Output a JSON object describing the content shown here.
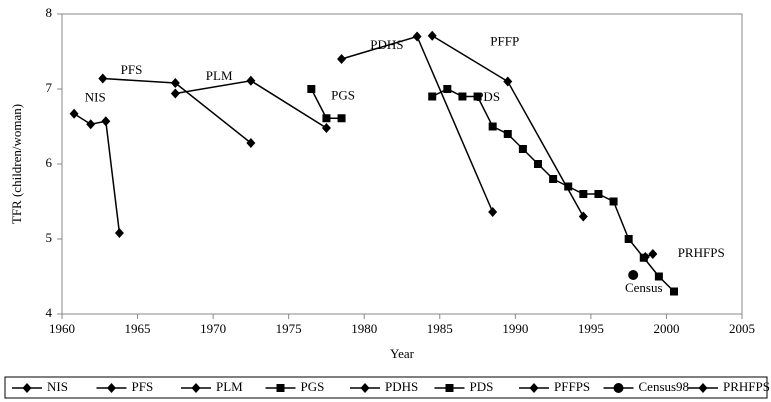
{
  "chart_data": {
    "type": "line",
    "xlabel": "Year",
    "ylabel": "TFR (children/woman)",
    "xlim": [
      1960,
      2005
    ],
    "xticks": [
      1960,
      1965,
      1970,
      1975,
      1980,
      1985,
      1990,
      1995,
      2000,
      2005
    ],
    "ylim": [
      4,
      8
    ],
    "yticks": [
      4,
      5,
      6,
      7,
      8
    ],
    "annotations": [
      "NIS",
      "PFS",
      "PLM",
      "PGS",
      "PDHS",
      "PFFP",
      "PDS",
      "PRHFPS",
      "Census"
    ],
    "series": [
      {
        "name": "NIS",
        "color": "#000000",
        "marker": "diamond",
        "x": [
          1960.8,
          1961.9,
          1962.9,
          1963.8
        ],
        "values": [
          6.67,
          6.53,
          6.57,
          5.08
        ]
      },
      {
        "name": "PFS",
        "color": "#000000",
        "marker": "diamond",
        "x": [
          1962.7,
          1967.5,
          1972.5
        ],
        "values": [
          7.14,
          7.08,
          6.28
        ]
      },
      {
        "name": "PLM",
        "color": "#000000",
        "marker": "diamond",
        "x": [
          1967.5,
          1972.5,
          1977.5
        ],
        "values": [
          6.94,
          7.11,
          6.48
        ]
      },
      {
        "name": "PGS",
        "color": "#000000",
        "marker": "square",
        "x": [
          1976.5,
          1977.5,
          1978.5
        ],
        "values": [
          7.0,
          6.61,
          6.61
        ]
      },
      {
        "name": "PDHS",
        "color": "#000000",
        "marker": "diamond",
        "x": [
          1978.5,
          1983.5,
          1988.5
        ],
        "values": [
          7.4,
          7.7,
          5.36
        ]
      },
      {
        "name": "PDS",
        "color": "#000000",
        "marker": "square",
        "x": [
          1984.5,
          1985.5,
          1986.5,
          1987.5,
          1988.5,
          1989.5,
          1990.5,
          1991.5,
          1992.5,
          1993.5,
          1994.5,
          1995.5,
          1996.5,
          1997.5,
          1998.5,
          1999.5,
          2000.5
        ],
        "values": [
          6.9,
          7.0,
          6.9,
          6.9,
          6.5,
          6.4,
          6.2,
          6.0,
          5.8,
          5.7,
          5.6,
          5.6,
          5.5,
          5.0,
          4.75,
          4.5,
          4.3
        ]
      },
      {
        "name": "PFFPS",
        "color": "#000000",
        "marker": "diamond",
        "x": [
          1984.5,
          1989.5,
          1994.5
        ],
        "values": [
          7.71,
          7.1,
          5.3
        ]
      },
      {
        "name": "Census98",
        "color": "#000000",
        "marker": "circle",
        "x": [
          1997.8
        ],
        "values": [
          4.52
        ]
      },
      {
        "name": "PRHFPS",
        "color": "#000000",
        "marker": "diamond",
        "x": [
          1998.6,
          1999.1
        ],
        "values": [
          4.76,
          4.8
        ]
      }
    ]
  }
}
